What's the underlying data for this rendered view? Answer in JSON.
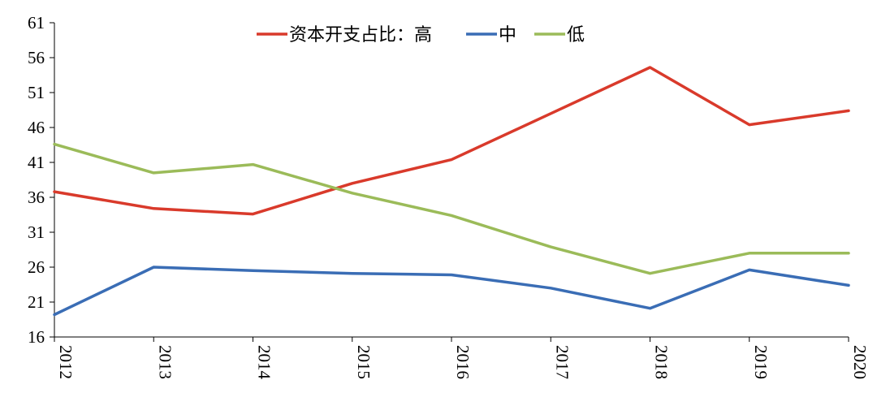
{
  "chart_data": {
    "type": "line",
    "x": [
      "2012",
      "2013",
      "2014",
      "2015",
      "2016",
      "2017",
      "2018",
      "2019",
      "2020"
    ],
    "yticks": [
      16,
      21,
      26,
      31,
      36,
      41,
      46,
      51,
      56,
      61
    ],
    "ylim": [
      16,
      61
    ],
    "legend_position": "top-center",
    "legend_separator": "：",
    "grid": false,
    "series": [
      {
        "name": "资本开支占比",
        "label": "高",
        "color": "#d93a2b",
        "values": [
          36.8,
          34.4,
          33.6,
          38.0,
          41.4,
          48.0,
          54.6,
          46.4,
          48.4
        ]
      },
      {
        "name": "中",
        "label": "中",
        "color": "#3a6db5",
        "values": [
          19.2,
          26.0,
          25.5,
          25.1,
          24.9,
          23.0,
          20.1,
          25.6,
          23.4
        ]
      },
      {
        "name": "低",
        "label": "低",
        "color": "#9bbb59",
        "values": [
          43.6,
          39.5,
          40.7,
          36.6,
          33.4,
          28.9,
          25.1,
          28.0,
          28.0
        ]
      }
    ]
  }
}
